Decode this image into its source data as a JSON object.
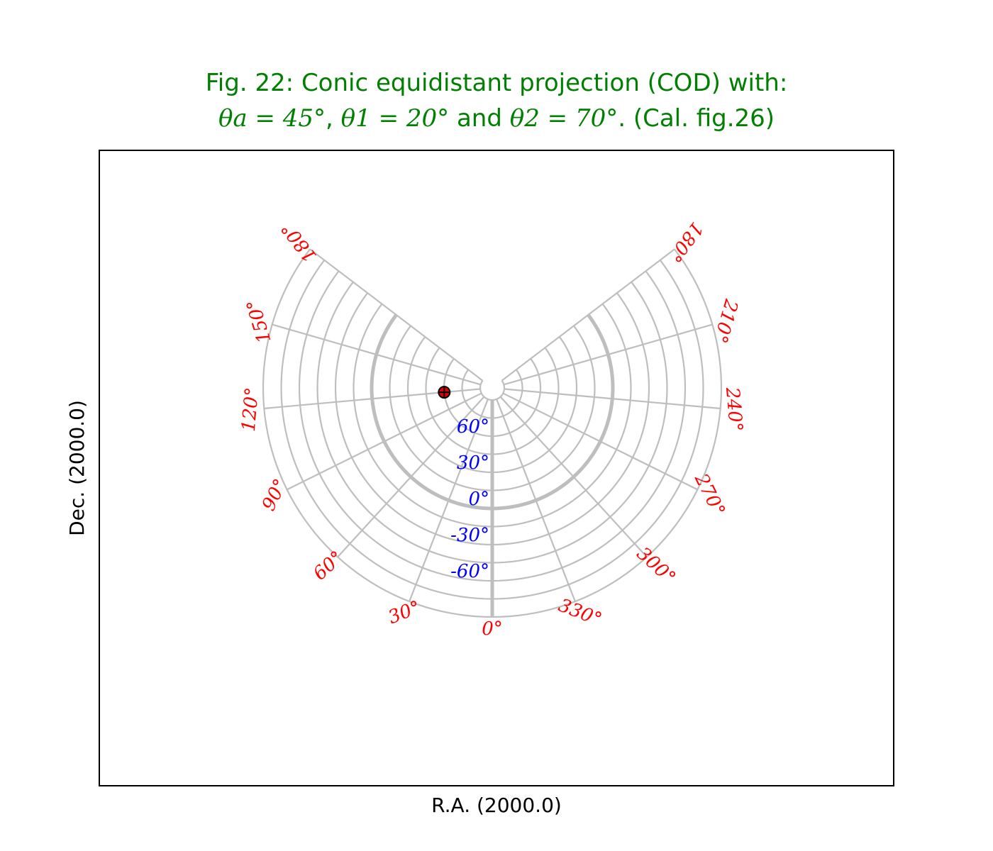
{
  "title": {
    "line1": "Fig. 22: Conic equidistant projection (COD) with:",
    "theta_a": "θa = 45°",
    "sep1": ", ",
    "theta_1": "θ1 = 20°",
    "and": " and ",
    "theta_2": "θ2 = 70°",
    "tail": ". (Cal. fig.26)"
  },
  "chart_data": {
    "type": "scatter",
    "projection": "COD",
    "title": "Fig. 22: Conic equidistant projection (COD) with: θa = 45°, θ1 = 20° and θ2 = 70°. (Cal. fig.26)",
    "xlabel": "R.A. (2000.0)",
    "ylabel": "Dec. (2000.0)",
    "grid": true,
    "ra_graticule": [
      0,
      30,
      60,
      90,
      120,
      150,
      180,
      210,
      240,
      270,
      300,
      330
    ],
    "dec_graticule": [
      90,
      75,
      60,
      45,
      30,
      15,
      0,
      -15,
      -30,
      -45,
      -60,
      -75,
      -90
    ],
    "ra_tick_labels": [
      {
        "ra": 0,
        "text": "0°"
      },
      {
        "ra": 30,
        "text": "30°"
      },
      {
        "ra": 60,
        "text": "60°"
      },
      {
        "ra": 90,
        "text": "90°"
      },
      {
        "ra": 120,
        "text": "120°"
      },
      {
        "ra": 150,
        "text": "150°"
      },
      {
        "ra": 180,
        "text": "180°",
        "side": "left"
      },
      {
        "ra": 180,
        "text": "180°",
        "side": "right"
      },
      {
        "ra": 210,
        "text": "210°"
      },
      {
        "ra": 240,
        "text": "240°"
      },
      {
        "ra": 270,
        "text": "270°"
      },
      {
        "ra": 300,
        "text": "300°"
      },
      {
        "ra": 330,
        "text": "330°"
      }
    ],
    "dec_tick_labels": [
      {
        "dec": 60,
        "text": "60°"
      },
      {
        "dec": 30,
        "text": "30°"
      },
      {
        "dec": 0,
        "text": "0°"
      },
      {
        "dec": -30,
        "text": "-30°"
      },
      {
        "dec": -60,
        "text": "-60°"
      }
    ],
    "highlighted": {
      "ra_meridian": 0,
      "dec_parallel": 0
    },
    "points": [
      {
        "ra": 120,
        "dec": 60,
        "marker": "red circle with black cross"
      }
    ],
    "ra_label_color": "#ff0000",
    "dec_label_color": "#0000ff",
    "grid_color": "#bebebe",
    "title_color": "#008000"
  }
}
